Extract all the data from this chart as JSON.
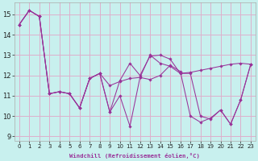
{
  "bg_color": "#c8f0ee",
  "grid_color": "#ddb0cc",
  "line_color": "#993399",
  "marker_color": "#993399",
  "xlabel": "Windchill (Refroidissement éolien,°C)",
  "xlim": [
    -0.5,
    23.5
  ],
  "ylim": [
    8.8,
    15.6
  ],
  "yticks": [
    9,
    10,
    11,
    12,
    13,
    14,
    15
  ],
  "xticks": [
    0,
    1,
    2,
    3,
    4,
    5,
    6,
    7,
    8,
    9,
    10,
    11,
    12,
    13,
    14,
    15,
    16,
    17,
    18,
    19,
    20,
    21,
    22,
    23
  ],
  "series": [
    [
      14.5,
      15.2,
      14.9,
      11.1,
      11.2,
      11.1,
      10.4,
      11.85,
      12.1,
      11.5,
      11.7,
      11.85,
      11.9,
      13.0,
      12.6,
      12.45,
      12.1,
      12.15,
      12.25,
      12.35,
      12.45,
      12.55,
      12.6,
      12.55
    ],
    [
      14.5,
      15.2,
      14.9,
      11.1,
      11.2,
      11.1,
      10.4,
      11.85,
      12.1,
      10.2,
      11.75,
      12.6,
      12.0,
      12.95,
      13.0,
      12.8,
      12.1,
      12.1,
      10.0,
      9.85,
      10.3,
      9.6,
      10.8,
      12.55
    ],
    [
      14.5,
      15.2,
      14.9,
      11.1,
      11.2,
      11.1,
      10.4,
      11.85,
      12.1,
      10.2,
      11.0,
      9.5,
      11.9,
      11.8,
      12.0,
      12.5,
      12.2,
      10.0,
      9.7,
      9.9,
      10.3,
      9.6,
      10.8,
      12.55
    ]
  ]
}
